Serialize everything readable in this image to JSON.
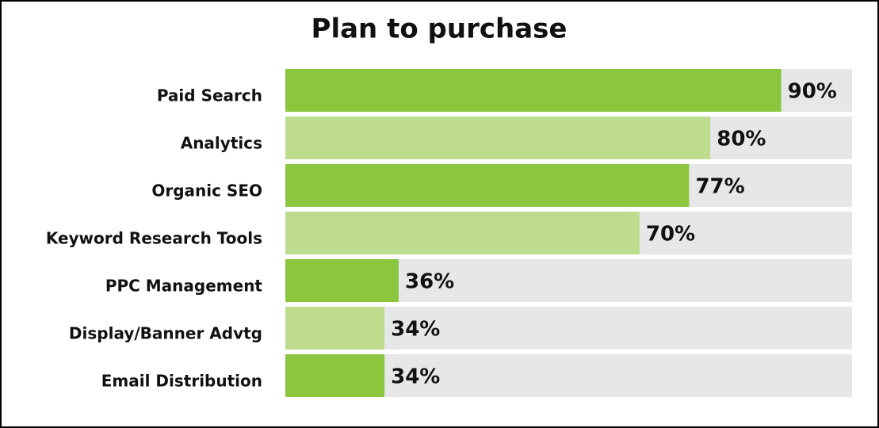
{
  "chart_data": {
    "type": "bar",
    "orientation": "horizontal",
    "title": "Plan to purchase",
    "categories": [
      "Paid Search",
      "Analytics",
      "Organic SEO",
      "Keyword Research Tools",
      "PPC Management",
      "Display/Banner Advtg",
      "Email Distribution"
    ],
    "values": [
      90,
      80,
      77,
      70,
      36,
      34,
      34
    ],
    "value_labels": [
      "90%",
      "80%",
      "77%",
      "70%",
      "36%",
      "34%",
      "34%"
    ],
    "colors": [
      "#8cc63f",
      "#bedc8e",
      "#8cc63f",
      "#bedc8e",
      "#8cc63f",
      "#bedc8e",
      "#8cc63f"
    ],
    "track_color": "#e6e7e8",
    "xlim": [
      20,
      100
    ]
  }
}
